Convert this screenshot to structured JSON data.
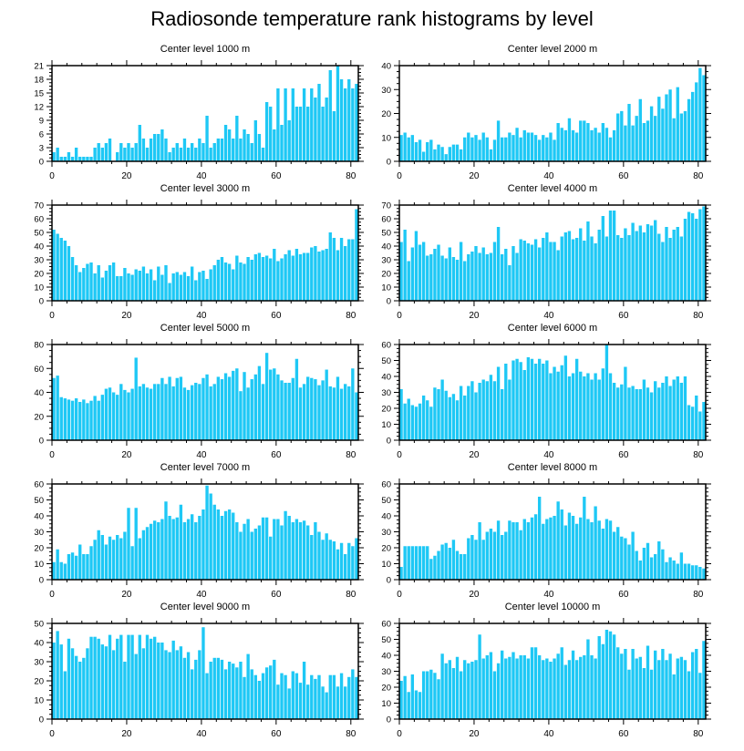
{
  "title": "Radiosonde temperature rank histograms by level",
  "bar_color": "#1ec8f5",
  "chart_data": [
    {
      "type": "bar",
      "title": "Center level 1000 m",
      "xlim": [
        0,
        82
      ],
      "ylim": [
        0,
        21
      ],
      "yticks": [
        0,
        3,
        6,
        9,
        12,
        15,
        18,
        21
      ],
      "xticks": [
        0,
        20,
        40,
        60,
        80
      ],
      "values": [
        2,
        3,
        1,
        1,
        2,
        1,
        3,
        1,
        1,
        1,
        1,
        3,
        4,
        3,
        4,
        5,
        0,
        2,
        4,
        3,
        4,
        3,
        4,
        8,
        5,
        3,
        5,
        6,
        6,
        7,
        5,
        2,
        3,
        4,
        3,
        5,
        3,
        4,
        3,
        5,
        4,
        10,
        3,
        4,
        5,
        5,
        8,
        7,
        5,
        10,
        5,
        7,
        6,
        4,
        9,
        6,
        3,
        13,
        12,
        7,
        16,
        8,
        16,
        9,
        16,
        12,
        12,
        16,
        12,
        16,
        14,
        17,
        12,
        14,
        20,
        11,
        21,
        18,
        16,
        18,
        16,
        17
      ]
    },
    {
      "type": "bar",
      "title": "Center level 2000 m",
      "xlim": [
        0,
        82
      ],
      "ylim": [
        0,
        40
      ],
      "yticks": [
        0,
        10,
        20,
        30,
        40
      ],
      "xticks": [
        0,
        20,
        40,
        60,
        80
      ],
      "values": [
        11,
        12,
        10,
        11,
        8,
        9,
        4,
        8,
        9,
        5,
        7,
        6,
        3,
        6,
        7,
        7,
        5,
        10,
        12,
        10,
        11,
        9,
        12,
        10,
        5,
        9,
        17,
        10,
        10,
        12,
        11,
        14,
        10,
        13,
        12,
        12,
        11,
        9,
        11,
        10,
        12,
        9,
        16,
        14,
        13,
        18,
        13,
        12,
        17,
        17,
        16,
        13,
        14,
        12,
        16,
        14,
        10,
        13,
        20,
        21,
        15,
        24,
        15,
        19,
        26,
        16,
        17,
        23,
        19,
        27,
        22,
        28,
        30,
        18,
        31,
        20,
        21,
        26,
        29,
        33,
        39,
        36
      ]
    },
    {
      "type": "bar",
      "title": "Center level 3000 m",
      "xlim": [
        0,
        82
      ],
      "ylim": [
        0,
        70
      ],
      "yticks": [
        0,
        10,
        20,
        30,
        40,
        50,
        60,
        70
      ],
      "xticks": [
        0,
        20,
        40,
        60,
        80
      ],
      "values": [
        52,
        49,
        46,
        44,
        40,
        32,
        26,
        21,
        24,
        27,
        28,
        20,
        26,
        17,
        22,
        26,
        28,
        18,
        18,
        24,
        20,
        19,
        23,
        22,
        25,
        20,
        23,
        15,
        25,
        19,
        26,
        13,
        20,
        21,
        19,
        21,
        18,
        25,
        15,
        21,
        22,
        16,
        23,
        26,
        30,
        32,
        28,
        27,
        23,
        33,
        28,
        27,
        32,
        30,
        34,
        35,
        32,
        33,
        31,
        38,
        29,
        31,
        34,
        37,
        33,
        38,
        34,
        35,
        35,
        39,
        40,
        36,
        37,
        38,
        50,
        46,
        37,
        46,
        40,
        45,
        45,
        67
      ]
    },
    {
      "type": "bar",
      "title": "Center level 4000 m",
      "xlim": [
        0,
        82
      ],
      "ylim": [
        0,
        70
      ],
      "yticks": [
        0,
        10,
        20,
        30,
        40,
        50,
        60,
        70
      ],
      "xticks": [
        0,
        20,
        40,
        60,
        80
      ],
      "values": [
        43,
        52,
        29,
        39,
        51,
        41,
        43,
        33,
        34,
        38,
        41,
        33,
        31,
        39,
        32,
        30,
        43,
        29,
        34,
        36,
        40,
        35,
        39,
        34,
        35,
        43,
        54,
        34,
        38,
        26,
        40,
        35,
        45,
        44,
        42,
        41,
        45,
        39,
        46,
        50,
        43,
        43,
        37,
        47,
        50,
        51,
        45,
        46,
        53,
        44,
        58,
        47,
        42,
        52,
        62,
        47,
        66,
        66,
        48,
        46,
        53,
        48,
        57,
        51,
        55,
        50,
        56,
        55,
        59,
        49,
        43,
        54,
        46,
        52,
        54,
        47,
        60,
        65,
        64,
        60,
        67,
        69
      ]
    },
    {
      "type": "bar",
      "title": "Center level 5000 m",
      "xlim": [
        0,
        82
      ],
      "ylim": [
        0,
        80
      ],
      "yticks": [
        0,
        20,
        40,
        60,
        80
      ],
      "xticks": [
        0,
        20,
        40,
        60,
        80
      ],
      "values": [
        52,
        54,
        36,
        35,
        34,
        33,
        35,
        32,
        34,
        31,
        33,
        37,
        33,
        38,
        43,
        44,
        40,
        38,
        47,
        42,
        40,
        43,
        69,
        45,
        47,
        44,
        43,
        47,
        47,
        52,
        47,
        53,
        45,
        52,
        53,
        44,
        42,
        46,
        48,
        47,
        52,
        55,
        45,
        47,
        53,
        51,
        56,
        53,
        58,
        60,
        41,
        57,
        44,
        51,
        55,
        62,
        47,
        73,
        59,
        60,
        55,
        50,
        48,
        48,
        52,
        68,
        44,
        47,
        53,
        52,
        51,
        46,
        50,
        59,
        45,
        44,
        53,
        43,
        47,
        45,
        60,
        40
      ]
    },
    {
      "type": "bar",
      "title": "Center level 6000 m",
      "xlim": [
        0,
        82
      ],
      "ylim": [
        0,
        60
      ],
      "yticks": [
        0,
        10,
        20,
        30,
        40,
        50,
        60
      ],
      "xticks": [
        0,
        20,
        40,
        60,
        80
      ],
      "values": [
        32,
        23,
        26,
        22,
        21,
        23,
        28,
        25,
        21,
        33,
        32,
        38,
        31,
        27,
        29,
        25,
        34,
        28,
        34,
        37,
        30,
        36,
        38,
        37,
        41,
        37,
        46,
        32,
        48,
        38,
        50,
        51,
        49,
        44,
        52,
        51,
        48,
        51,
        48,
        50,
        42,
        46,
        43,
        47,
        53,
        40,
        42,
        51,
        43,
        40,
        42,
        38,
        42,
        38,
        45,
        60,
        42,
        36,
        33,
        35,
        46,
        33,
        34,
        32,
        32,
        38,
        33,
        30,
        37,
        33,
        36,
        40,
        34,
        38,
        40,
        36,
        40,
        22,
        21,
        28,
        18,
        24
      ]
    },
    {
      "type": "bar",
      "title": "Center level 7000 m",
      "xlim": [
        0,
        82
      ],
      "ylim": [
        0,
        60
      ],
      "yticks": [
        0,
        10,
        20,
        30,
        40,
        50,
        60
      ],
      "xticks": [
        0,
        20,
        40,
        60,
        80
      ],
      "values": [
        11,
        19,
        11,
        10,
        16,
        17,
        15,
        22,
        16,
        16,
        21,
        25,
        31,
        28,
        22,
        27,
        25,
        28,
        26,
        30,
        45,
        21,
        45,
        26,
        31,
        33,
        35,
        37,
        36,
        38,
        49,
        40,
        38,
        39,
        47,
        36,
        38,
        41,
        36,
        40,
        44,
        59,
        54,
        47,
        44,
        40,
        43,
        44,
        42,
        36,
        30,
        35,
        38,
        30,
        32,
        34,
        39,
        39,
        27,
        38,
        38,
        34,
        43,
        40,
        36,
        38,
        36,
        37,
        34,
        28,
        36,
        30,
        25,
        29,
        25,
        24,
        19,
        23,
        16,
        23,
        21,
        26
      ]
    },
    {
      "type": "bar",
      "title": "Center level 8000 m",
      "xlim": [
        0,
        82
      ],
      "ylim": [
        0,
        60
      ],
      "yticks": [
        0,
        10,
        20,
        30,
        40,
        50,
        60
      ],
      "xticks": [
        0,
        20,
        40,
        60,
        80
      ],
      "values": [
        8,
        21,
        21,
        21,
        21,
        21,
        21,
        21,
        13,
        15,
        18,
        22,
        23,
        20,
        25,
        18,
        16,
        16,
        26,
        28,
        25,
        36,
        25,
        30,
        32,
        30,
        37,
        28,
        30,
        37,
        36,
        36,
        31,
        38,
        36,
        39,
        41,
        52,
        35,
        38,
        39,
        40,
        49,
        44,
        34,
        42,
        40,
        35,
        39,
        52,
        38,
        36,
        46,
        37,
        32,
        38,
        37,
        30,
        33,
        27,
        26,
        22,
        30,
        18,
        12,
        20,
        23,
        14,
        16,
        24,
        19,
        11,
        14,
        12,
        10,
        17,
        10,
        10,
        9,
        9,
        8,
        7
      ]
    },
    {
      "type": "bar",
      "title": "Center level 9000 m",
      "xlim": [
        0,
        82
      ],
      "ylim": [
        0,
        50
      ],
      "yticks": [
        0,
        10,
        20,
        30,
        40,
        50
      ],
      "xticks": [
        0,
        20,
        40,
        60,
        80
      ],
      "values": [
        40,
        46,
        39,
        25,
        42,
        37,
        33,
        30,
        32,
        37,
        43,
        43,
        42,
        39,
        38,
        44,
        36,
        42,
        44,
        30,
        44,
        44,
        34,
        44,
        37,
        44,
        42,
        43,
        40,
        40,
        36,
        35,
        41,
        36,
        38,
        32,
        35,
        26,
        31,
        36,
        48,
        24,
        30,
        32,
        32,
        31,
        26,
        30,
        29,
        27,
        30,
        22,
        34,
        26,
        23,
        20,
        24,
        27,
        28,
        31,
        18,
        24,
        23,
        16,
        25,
        24,
        19,
        30,
        18,
        23,
        21,
        23,
        17,
        14,
        23,
        23,
        17,
        24,
        17,
        22,
        26,
        22
      ]
    },
    {
      "type": "bar",
      "title": "Center level 10000 m",
      "xlim": [
        0,
        82
      ],
      "ylim": [
        0,
        60
      ],
      "yticks": [
        0,
        10,
        20,
        30,
        40,
        50,
        60
      ],
      "xticks": [
        0,
        20,
        40,
        60,
        80
      ],
      "values": [
        24,
        27,
        17,
        28,
        18,
        17,
        30,
        30,
        31,
        29,
        25,
        41,
        35,
        37,
        32,
        39,
        30,
        37,
        35,
        36,
        37,
        53,
        38,
        40,
        42,
        30,
        35,
        43,
        38,
        39,
        42,
        38,
        40,
        40,
        38,
        45,
        45,
        40,
        37,
        38,
        36,
        38,
        41,
        45,
        34,
        37,
        43,
        37,
        39,
        40,
        50,
        40,
        38,
        52,
        47,
        56,
        55,
        53,
        45,
        41,
        44,
        31,
        44,
        38,
        39,
        32,
        46,
        31,
        43,
        37,
        44,
        37,
        41,
        28,
        38,
        39,
        37,
        30,
        42,
        44,
        29,
        49
      ]
    }
  ]
}
